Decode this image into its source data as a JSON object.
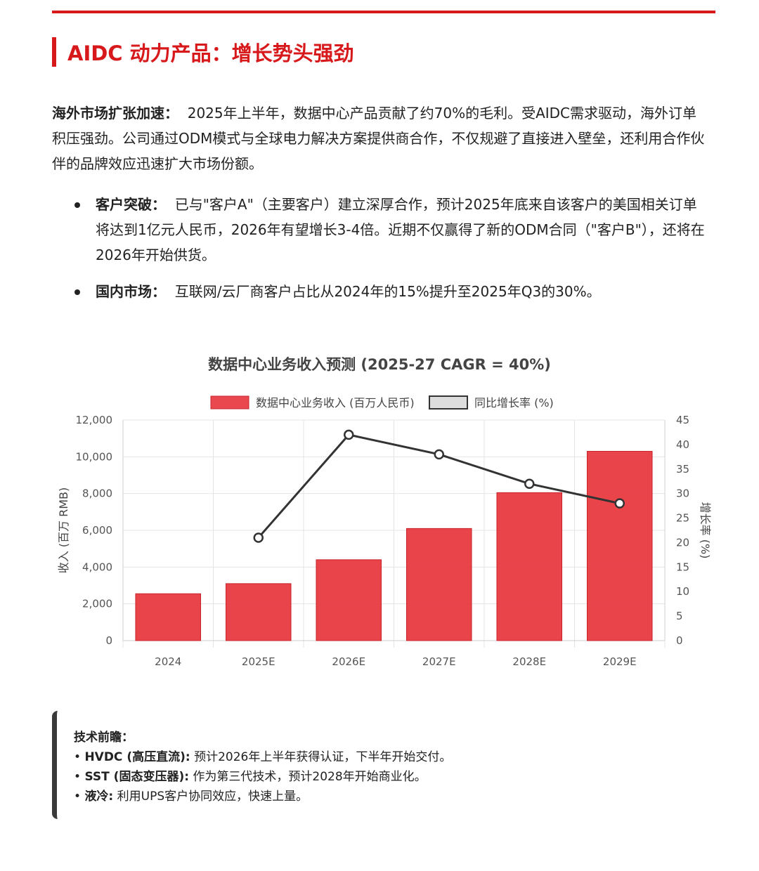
{
  "header": {
    "title": "AIDC 动力产品：增长势头强劲"
  },
  "overseas": {
    "label": "海外市场扩张加速：",
    "text": "2025年上半年，数据中心产品贡献了约70%的毛利。受AIDC需求驱动，海外订单积压强劲。公司通过ODM模式与全球电力解决方案提供商合作，不仅规避了直接进入壁垒，还利用合作伙伴的品牌效应迅速扩大市场份额。"
  },
  "bullets": [
    {
      "label": "客户突破：",
      "text": "已与\"客户A\"（主要客户）建立深厚合作，预计2025年底来自该客户的美国相关订单将达到1亿元人民币，2026年有望增长3-4倍。近期不仅赢得了新的ODM合同（\"客户B\"），还将在2026年开始供货。"
    },
    {
      "label": "国内市场：",
      "text": "互联网/云厂商客户占比从2024年的15%提升至2025年Q3的30%。"
    }
  ],
  "chart_data": {
    "type": "bar",
    "title": "数据中心业务收入预测 (2025-27 CAGR = 40%)",
    "categories": [
      "2024",
      "2025E",
      "2026E",
      "2027E",
      "2028E",
      "2029E"
    ],
    "series": [
      {
        "name": "数据中心业务收入 (百万人民币)",
        "type": "bar",
        "axis": "left",
        "color": "#e8343c",
        "values": [
          2550,
          3100,
          4400,
          6100,
          8050,
          10300
        ]
      },
      {
        "name": "同比增长率 (%)",
        "type": "line",
        "axis": "right",
        "color": "#333333",
        "values": [
          null,
          21,
          42,
          38,
          32,
          28
        ]
      }
    ],
    "ylabel": "收入 (百万 RMB)",
    "y2label": "增长率 (%)",
    "ylim": [
      0,
      12000
    ],
    "y2lim": [
      0,
      45
    ],
    "yticks": [
      "0",
      "2,000",
      "4,000",
      "6,000",
      "8,000",
      "10,000",
      "12,000"
    ],
    "y2ticks": [
      "0",
      "5",
      "10",
      "15",
      "20",
      "25",
      "30",
      "35",
      "40",
      "45"
    ],
    "grid": true,
    "legend_position": "top"
  },
  "tech": {
    "title": "技术前瞻：",
    "items": [
      {
        "label": "HVDC (高压直流):",
        "text": "预计2026年上半年获得认证，下半年开始交付。"
      },
      {
        "label": "SST (固态变压器):",
        "text": "作为第三代技术，预计2028年开始商业化。"
      },
      {
        "label": "液冷:",
        "text": "利用UPS客户协同效应，快速上量。"
      }
    ]
  }
}
